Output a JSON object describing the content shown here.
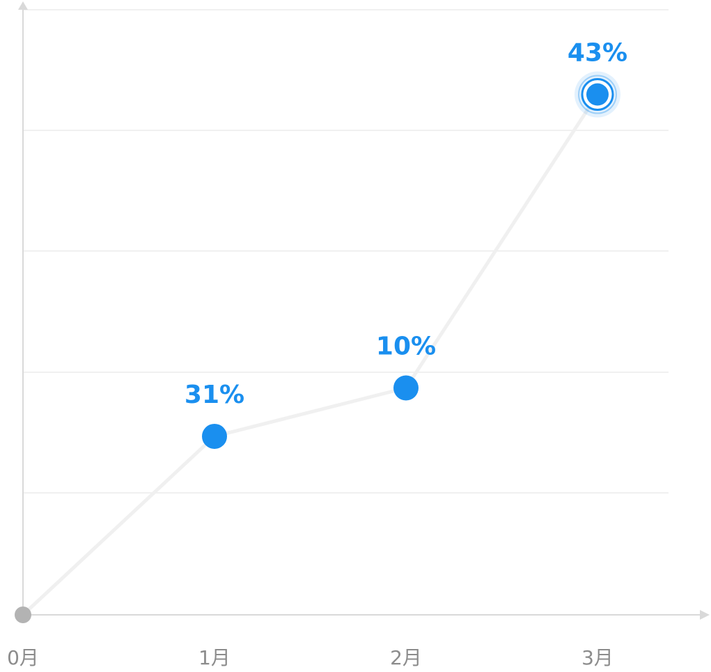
{
  "chart_data": {
    "type": "line",
    "categories": [
      "0月",
      "1月",
      "2月",
      "3月"
    ],
    "values": [
      0,
      31,
      10,
      43
    ],
    "point_positions": [
      0,
      0.295,
      0.375,
      0.86
    ],
    "data_labels": [
      "",
      "31%",
      "10%",
      "43%"
    ],
    "highlight_index": 3,
    "grid": true,
    "colors": {
      "point": "#1a8fef",
      "origin_point": "#b3b3b3",
      "line": "#f0f0f0",
      "axis": "#d9d9d9",
      "grid": "#f0f0f0",
      "tick_text": "#8c8c8c",
      "label_text": "#1a8fef"
    }
  }
}
